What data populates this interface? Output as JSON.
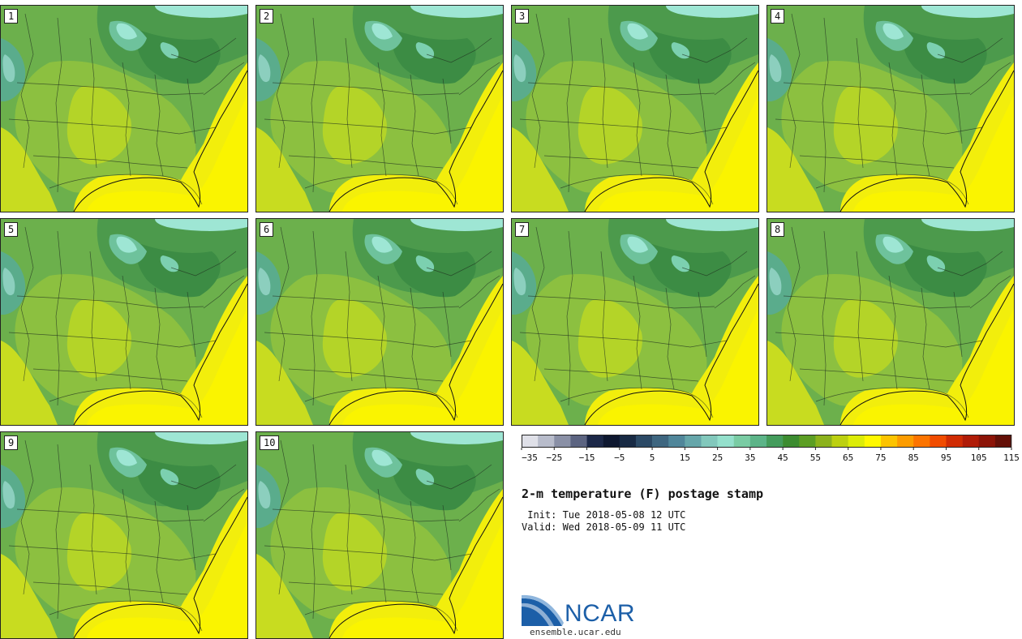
{
  "title": "2-m temperature (F) postage stamp",
  "init_line": " Init: Tue 2018-05-08 12 UTC",
  "valid_line": "Valid: Wed 2018-05-09 11 UTC",
  "logo": {
    "text": "NCAR",
    "url": "ensemble.ucar.edu"
  },
  "panels": [
    {
      "label": "1"
    },
    {
      "label": "2"
    },
    {
      "label": "3"
    },
    {
      "label": "4"
    },
    {
      "label": "5"
    },
    {
      "label": "6"
    },
    {
      "label": "7"
    },
    {
      "label": "8"
    },
    {
      "label": "9"
    },
    {
      "label": "10"
    }
  ],
  "colorbar": {
    "tick_labels": [
      "−35",
      "−25",
      "−15",
      "−5",
      "5",
      "15",
      "25",
      "35",
      "45",
      "55",
      "65",
      "75",
      "85",
      "95",
      "105",
      "115"
    ],
    "colors": [
      "#dfe0e8",
      "#b8bccb",
      "#8a90a6",
      "#5c6481",
      "#1c2848",
      "#0e1830",
      "#182a44",
      "#2c4a66",
      "#3e6680",
      "#50869a",
      "#66a6aa",
      "#82c8bc",
      "#94e0cc",
      "#7acca4",
      "#5cb488",
      "#449c5c",
      "#3c8c30",
      "#5c9e24",
      "#8cb21c",
      "#bcd010",
      "#dcec08",
      "#fff800",
      "#fcc400",
      "#fc9c00",
      "#fc7400",
      "#f04c00",
      "#d02c04",
      "#b01c08",
      "#8c1408",
      "#641008"
    ]
  }
}
